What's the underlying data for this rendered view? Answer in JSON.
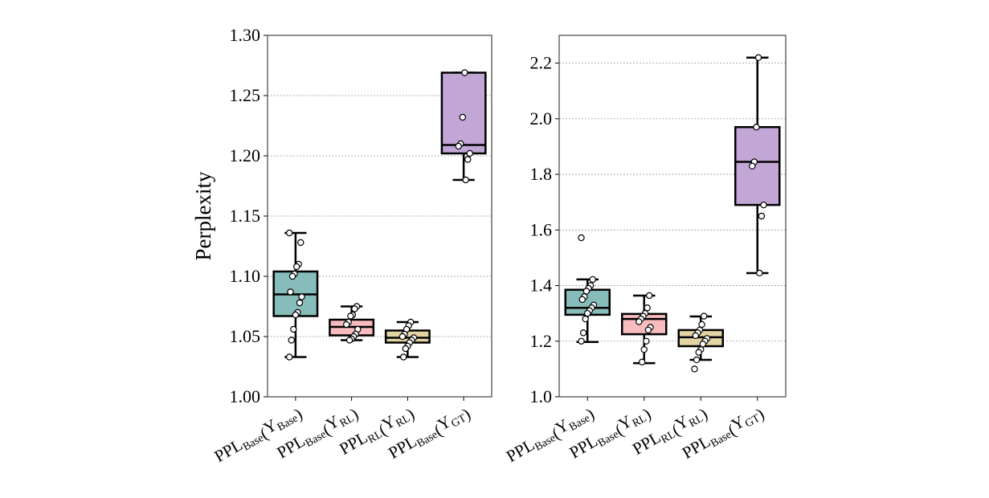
{
  "chart_data": [
    {
      "type": "box",
      "ylabel": "Perplexity",
      "ylim": [
        1.0,
        1.3
      ],
      "yticks": [
        "1.00",
        "1.05",
        "1.10",
        "1.15",
        "1.20",
        "1.25",
        "1.30"
      ],
      "grid": "horizontal dotted",
      "categories": [
        {
          "main": "PPL",
          "sub": "Base",
          "arg": "Y",
          "argsub": "Base"
        },
        {
          "main": "PPL",
          "sub": "Base",
          "arg": "Y",
          "argsub": "RL"
        },
        {
          "main": "PPL",
          "sub": "RL",
          "arg": "Y",
          "argsub": "RL"
        },
        {
          "main": "PPL",
          "sub": "Base",
          "arg": "Y",
          "argsub": "GT"
        }
      ],
      "boxes": [
        {
          "color": "#86bcb9",
          "whisker_low": 1.033,
          "q1": 1.067,
          "median": 1.085,
          "q3": 1.104,
          "whisker_high": 1.136,
          "points": [
            1.136,
            1.128,
            1.11,
            1.108,
            1.102,
            1.1,
            1.087,
            1.083,
            1.078,
            1.07,
            1.068,
            1.056,
            1.047,
            1.033
          ]
        },
        {
          "color": "#f8bcbf",
          "whisker_low": 1.047,
          "q1": 1.051,
          "median": 1.058,
          "q3": 1.064,
          "whisker_high": 1.075,
          "points": [
            1.075,
            1.073,
            1.068,
            1.067,
            1.062,
            1.06,
            1.056,
            1.052,
            1.05,
            1.048,
            1.047
          ]
        },
        {
          "color": "#e3d5a3",
          "whisker_low": 1.033,
          "q1": 1.045,
          "median": 1.049,
          "q3": 1.055,
          "whisker_high": 1.062,
          "points": [
            1.062,
            1.059,
            1.056,
            1.052,
            1.05,
            1.049,
            1.047,
            1.045,
            1.042,
            1.04,
            1.033
          ]
        },
        {
          "color": "#c2a7d6",
          "whisker_low": 1.18,
          "q1": 1.202,
          "median": 1.209,
          "q3": 1.269,
          "whisker_high": 1.269,
          "points": [
            1.269,
            1.232,
            1.21,
            1.208,
            1.202,
            1.197,
            1.18
          ]
        }
      ]
    },
    {
      "type": "box",
      "ylabel": "",
      "ylim": [
        1.0,
        2.3
      ],
      "yticks": [
        "1.0",
        "1.2",
        "1.4",
        "1.6",
        "1.8",
        "2.0",
        "2.2"
      ],
      "grid": "horizontal dotted",
      "categories": [
        {
          "main": "PPL",
          "sub": "Base",
          "arg": "Y",
          "argsub": "Base"
        },
        {
          "main": "PPL",
          "sub": "Base",
          "arg": "Y",
          "argsub": "RL"
        },
        {
          "main": "PPL",
          "sub": "RL",
          "arg": "Y",
          "argsub": "RL"
        },
        {
          "main": "PPL",
          "sub": "Base",
          "arg": "Y",
          "argsub": "GT"
        }
      ],
      "boxes": [
        {
          "color": "#86bcb9",
          "whisker_low": 1.197,
          "q1": 1.295,
          "median": 1.32,
          "q3": 1.385,
          "whisker_high": 1.422,
          "points": [
            1.572,
            1.422,
            1.4,
            1.39,
            1.38,
            1.36,
            1.35,
            1.33,
            1.32,
            1.31,
            1.3,
            1.28,
            1.23,
            1.2
          ]
        },
        {
          "color": "#f8bcbf",
          "whisker_low": 1.121,
          "q1": 1.225,
          "median": 1.28,
          "q3": 1.298,
          "whisker_high": 1.364,
          "points": [
            1.364,
            1.32,
            1.3,
            1.29,
            1.28,
            1.27,
            1.25,
            1.24,
            1.2,
            1.17,
            1.125
          ]
        },
        {
          "color": "#e3d5a3",
          "whisker_low": 1.133,
          "q1": 1.182,
          "median": 1.214,
          "q3": 1.24,
          "whisker_high": 1.289,
          "points": [
            1.29,
            1.26,
            1.24,
            1.23,
            1.22,
            1.21,
            1.2,
            1.19,
            1.17,
            1.16,
            1.133,
            1.1
          ]
        },
        {
          "color": "#c2a7d6",
          "whisker_low": 1.445,
          "q1": 1.69,
          "median": 1.845,
          "q3": 1.97,
          "whisker_high": 2.22,
          "points": [
            2.22,
            1.97,
            1.845,
            1.83,
            1.69,
            1.65,
            1.445
          ]
        }
      ]
    }
  ]
}
